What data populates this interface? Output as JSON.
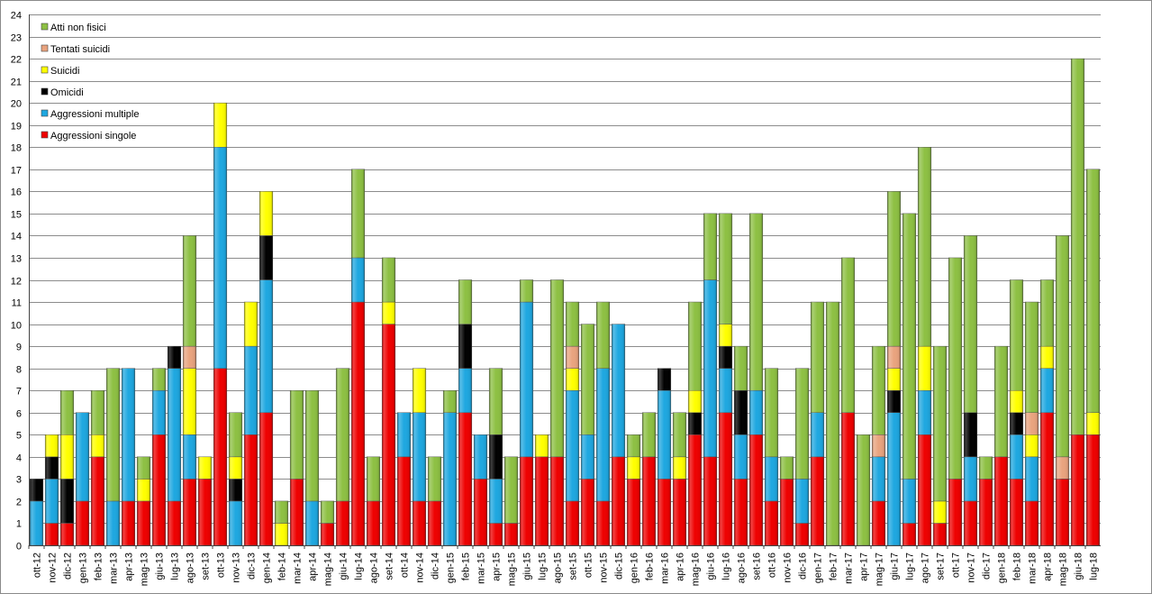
{
  "chart_data": {
    "type": "bar",
    "stacked": true,
    "ylim": [
      0,
      24
    ],
    "yticks": [
      0,
      1,
      2,
      3,
      4,
      5,
      6,
      7,
      8,
      9,
      10,
      11,
      12,
      13,
      14,
      15,
      16,
      17,
      18,
      19,
      20,
      21,
      22,
      23,
      24
    ],
    "grid": true,
    "legend_position": "top-left",
    "categories": [
      "ott-12",
      "nov-12",
      "dic-12",
      "gen-13",
      "feb-13",
      "mar-13",
      "apr-13",
      "mag-13",
      "giu-13",
      "lug-13",
      "ago-13",
      "set-13",
      "ott-13",
      "nov-13",
      "dic-13",
      "gen-14",
      "feb-14",
      "mar-14",
      "apr-14",
      "mag-14",
      "giu-14",
      "lug-14",
      "ago-14",
      "set-14",
      "ott-14",
      "nov-14",
      "dic-14",
      "gen-15",
      "feb-15",
      "mar-15",
      "apr-15",
      "mag-15",
      "giu-15",
      "lug-15",
      "ago-15",
      "set-15",
      "ott-15",
      "nov-15",
      "dic-15",
      "gen-16",
      "feb-16",
      "mar-16",
      "apr-16",
      "mag-16",
      "giu-16",
      "lug-16",
      "ago-16",
      "set-16",
      "ott-16",
      "nov-16",
      "dic-16",
      "gen-17",
      "feb-17",
      "mar-17",
      "apr-17",
      "mag-17",
      "giu-17",
      "lug-17",
      "ago-17",
      "set-17",
      "ott-17",
      "nov-17",
      "dic-17",
      "gen-18",
      "feb-18",
      "mar-18",
      "apr-18",
      "mag-18",
      "giu-18",
      "lug-18"
    ],
    "series": [
      {
        "name": "Aggressioni singole",
        "color": "#ee0000",
        "values": [
          0,
          1,
          1,
          2,
          4,
          0,
          2,
          2,
          5,
          2,
          3,
          3,
          8,
          0,
          5,
          6,
          0,
          3,
          0,
          1,
          2,
          11,
          2,
          10,
          4,
          2,
          2,
          0,
          6,
          3,
          1,
          1,
          4,
          4,
          4,
          2,
          3,
          2,
          4,
          3,
          4,
          3,
          3,
          5,
          4,
          6,
          3,
          5,
          2,
          3,
          1,
          4,
          0,
          6,
          0,
          2,
          0,
          1,
          5,
          1,
          3,
          2,
          3,
          4,
          3,
          2,
          6,
          3,
          5,
          5
        ]
      },
      {
        "name": "Aggressioni multiple",
        "color": "#1ea7e0",
        "values": [
          2,
          2,
          0,
          4,
          0,
          2,
          6,
          0,
          2,
          6,
          2,
          0,
          10,
          2,
          4,
          6,
          0,
          0,
          2,
          0,
          0,
          2,
          0,
          0,
          2,
          4,
          0,
          6,
          2,
          2,
          2,
          0,
          7,
          0,
          0,
          5,
          2,
          6,
          6,
          0,
          0,
          4,
          0,
          0,
          8,
          2,
          2,
          2,
          2,
          0,
          2,
          2,
          0,
          0,
          0,
          2,
          6,
          2,
          2,
          0,
          0,
          2,
          0,
          0,
          2,
          2,
          2,
          0,
          0,
          0
        ]
      },
      {
        "name": "Omicidi",
        "color": "#000000",
        "values": [
          1,
          1,
          2,
          0,
          0,
          0,
          0,
          0,
          0,
          1,
          0,
          0,
          0,
          1,
          0,
          2,
          0,
          0,
          0,
          0,
          0,
          0,
          0,
          0,
          0,
          0,
          0,
          0,
          2,
          0,
          2,
          0,
          0,
          0,
          0,
          0,
          0,
          0,
          0,
          0,
          0,
          1,
          0,
          1,
          0,
          1,
          2,
          0,
          0,
          0,
          0,
          0,
          0,
          0,
          0,
          0,
          1,
          0,
          0,
          0,
          0,
          2,
          0,
          0,
          1,
          0,
          0,
          0,
          0,
          0
        ]
      },
      {
        "name": "Suicidi",
        "color": "#ffff00",
        "values": [
          0,
          1,
          2,
          0,
          1,
          0,
          0,
          1,
          0,
          0,
          3,
          1,
          2,
          1,
          2,
          2,
          1,
          0,
          0,
          0,
          0,
          0,
          0,
          1,
          0,
          2,
          0,
          0,
          0,
          0,
          0,
          0,
          0,
          1,
          0,
          1,
          0,
          0,
          0,
          1,
          0,
          0,
          1,
          1,
          0,
          1,
          0,
          0,
          0,
          0,
          0,
          0,
          0,
          0,
          0,
          0,
          1,
          0,
          2,
          1,
          0,
          0,
          0,
          0,
          1,
          1,
          1,
          0,
          0,
          1
        ]
      },
      {
        "name": "Tentati suicidi",
        "color": "#e9a37e",
        "values": [
          0,
          0,
          0,
          0,
          0,
          0,
          0,
          0,
          0,
          0,
          1,
          0,
          0,
          0,
          0,
          0,
          0,
          0,
          0,
          0,
          0,
          0,
          0,
          0,
          0,
          0,
          0,
          0,
          0,
          0,
          0,
          0,
          0,
          0,
          0,
          1,
          0,
          0,
          0,
          0,
          0,
          0,
          0,
          0,
          0,
          0,
          0,
          0,
          0,
          0,
          0,
          0,
          0,
          0,
          0,
          1,
          1,
          0,
          0,
          0,
          0,
          0,
          0,
          0,
          0,
          1,
          0,
          1,
          0,
          0
        ]
      },
      {
        "name": "Atti non fisici",
        "color": "#8dc043",
        "values": [
          0,
          0,
          2,
          0,
          2,
          6,
          0,
          1,
          1,
          0,
          5,
          0,
          0,
          2,
          0,
          0,
          1,
          4,
          5,
          1,
          6,
          4,
          2,
          2,
          0,
          0,
          2,
          1,
          2,
          0,
          3,
          3,
          1,
          0,
          8,
          2,
          5,
          3,
          0,
          1,
          2,
          0,
          2,
          4,
          3,
          5,
          2,
          8,
          4,
          1,
          5,
          5,
          11,
          7,
          5,
          4,
          7,
          12,
          9,
          7,
          10,
          8,
          1,
          5,
          5,
          5,
          3,
          10,
          17,
          11
        ]
      }
    ]
  }
}
